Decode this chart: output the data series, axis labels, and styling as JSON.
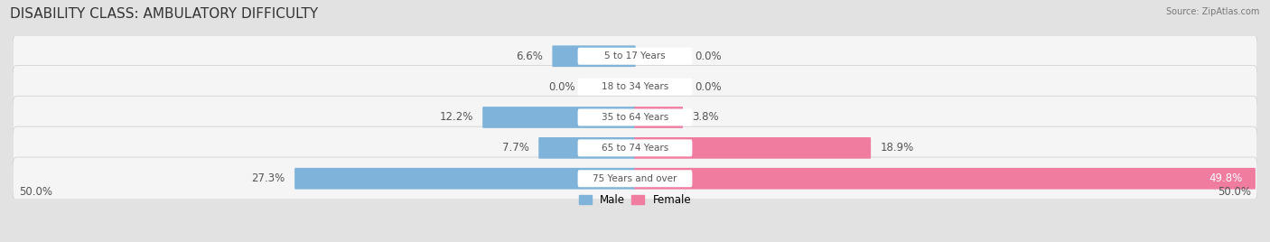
{
  "title": "DISABILITY CLASS: AMBULATORY DIFFICULTY",
  "source": "Source: ZipAtlas.com",
  "categories": [
    "5 to 17 Years",
    "18 to 34 Years",
    "35 to 64 Years",
    "65 to 74 Years",
    "75 Years and over"
  ],
  "male_values": [
    6.6,
    0.0,
    12.2,
    7.7,
    27.3
  ],
  "female_values": [
    0.0,
    0.0,
    3.8,
    18.9,
    49.8
  ],
  "male_color": "#7fb3d9",
  "female_color": "#f07ca0",
  "bg_color": "#e2e2e2",
  "row_bg_color": "#f5f5f5",
  "row_border_color": "#cccccc",
  "max_val": 50.0,
  "axis_label_left": "50.0%",
  "axis_label_right": "50.0%",
  "title_fontsize": 11,
  "label_fontsize": 8.5,
  "cat_fontsize": 7.5,
  "source_fontsize": 7
}
